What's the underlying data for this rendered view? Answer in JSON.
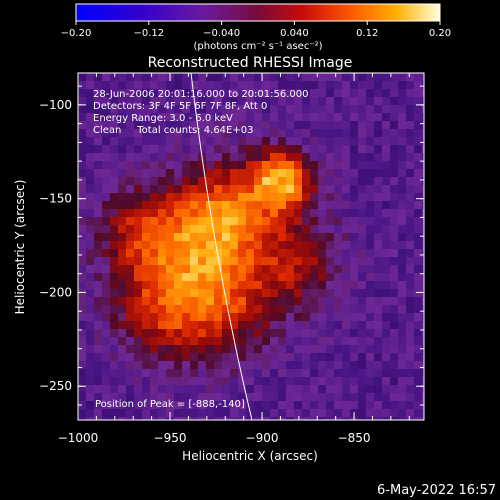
{
  "chart_data": {
    "type": "heatmap",
    "title": "Reconstructed RHESSI Image",
    "xlabel": "Heliocentric X (arcsec)",
    "ylabel": "Heliocentric Y (arcsec)",
    "xlim": [
      -1000,
      -812
    ],
    "ylim": [
      -268,
      -83
    ],
    "x_ticks": [
      "−1000",
      "−950",
      "−900",
      "−850"
    ],
    "y_ticks": [
      "−100",
      "−150",
      "−200",
      "−250"
    ],
    "colorbar": {
      "ticks": [
        "−0.20",
        "−0.12",
        "−0.040",
        "0.040",
        "0.12",
        "0.20"
      ],
      "range": [
        -0.2,
        0.2
      ],
      "units": "(photons cm⁻² s⁻¹ asec⁻²)"
    },
    "annotations": [
      "28-Jun-2006 20:01:16.000 to 20:01:56.000",
      "Detectors: 3F 4F 5F 6F 7F 8F, Att 0",
      "Energy Range: 3.0 - 6.0 keV",
      "Clean     Total counts: 4.64E+03"
    ],
    "peak_label": "Position of Peak = [-888,-140]",
    "peak": [
      -888,
      -140
    ]
  },
  "footer": {
    "date": "6-May-2022 16:57"
  }
}
